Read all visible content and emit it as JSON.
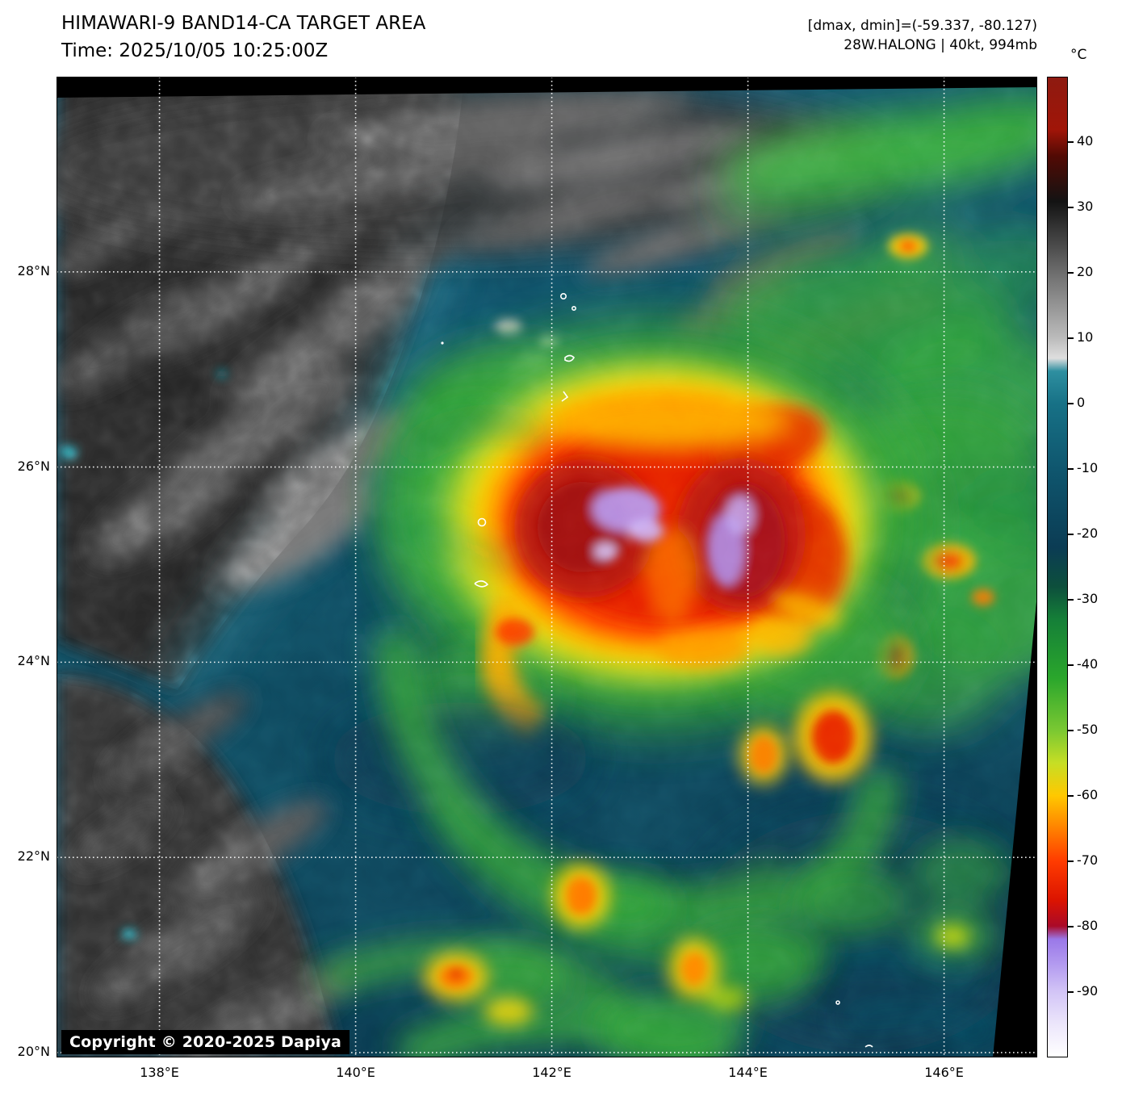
{
  "header": {
    "title": "HIMAWARI-9 BAND14-CA TARGET AREA",
    "time": "Time: 2025/10/05 10:25:00Z",
    "stats": "[dmax, dmin]=(-59.337, -80.127)",
    "storm": "28W.HALONG | 40kt, 994mb"
  },
  "copyright": "Copyright © 2020-2025 Dapiya",
  "colorbar": {
    "unit": "°C",
    "vmax": 50,
    "vmin": -100,
    "ticks": [
      40,
      30,
      20,
      10,
      0,
      -10,
      -20,
      -30,
      -40,
      -50,
      -60,
      -70,
      -80,
      -90
    ],
    "gradient": [
      {
        "v": 50,
        "c": "#8e1a10"
      },
      {
        "v": 42,
        "c": "#a01508"
      },
      {
        "v": 38,
        "c": "#520a04"
      },
      {
        "v": 31,
        "c": "#131313"
      },
      {
        "v": 20,
        "c": "#6e6e6e"
      },
      {
        "v": 10,
        "c": "#bcbcbc"
      },
      {
        "v": 7,
        "c": "#dedede"
      },
      {
        "v": 5,
        "c": "#2e8fa0"
      },
      {
        "v": 0,
        "c": "#177186"
      },
      {
        "v": -10,
        "c": "#0f566e"
      },
      {
        "v": -22,
        "c": "#0b3c54"
      },
      {
        "v": -28,
        "c": "#0d4f3c"
      },
      {
        "v": -33,
        "c": "#157f38"
      },
      {
        "v": -42,
        "c": "#2aa62c"
      },
      {
        "v": -50,
        "c": "#7ac832"
      },
      {
        "v": -55,
        "c": "#c6de25"
      },
      {
        "v": -60,
        "c": "#ffc800"
      },
      {
        "v": -65,
        "c": "#ff8200"
      },
      {
        "v": -70,
        "c": "#ff3c00"
      },
      {
        "v": -76,
        "c": "#dc1400"
      },
      {
        "v": -80,
        "c": "#aa0a28"
      },
      {
        "v": -82,
        "c": "#9a78e8"
      },
      {
        "v": -86,
        "c": "#b49cf0"
      },
      {
        "v": -90,
        "c": "#d2c4f6"
      },
      {
        "v": -95,
        "c": "#ece6fb"
      },
      {
        "v": -100,
        "c": "#ffffff"
      }
    ]
  },
  "axes": {
    "lat_ticks": [
      {
        "value": 28,
        "label": "28°N"
      },
      {
        "value": 26,
        "label": "26°N"
      },
      {
        "value": 24,
        "label": "24°N"
      },
      {
        "value": 22,
        "label": "22°N"
      },
      {
        "value": 20,
        "label": "20°N"
      }
    ],
    "lon_ticks": [
      {
        "value": 138,
        "label": "138°E"
      },
      {
        "value": 140,
        "label": "140°E"
      },
      {
        "value": 142,
        "label": "142°E"
      },
      {
        "value": 144,
        "label": "144°E"
      },
      {
        "value": 146,
        "label": "146°E"
      }
    ],
    "lon_range": [
      136.95,
      146.95
    ],
    "lat_range": [
      19.95,
      30.0
    ]
  },
  "chart_data": {
    "type": "heatmap",
    "title": "HIMAWARI-9 BAND14-CA TARGET AREA",
    "subtitle": "Time: 2025/10/05 10:25:00Z",
    "satellite": "HIMAWARI-9",
    "band": "BAND14-CA",
    "storm_label": "28W.HALONG",
    "storm_intensity_kt": 40,
    "storm_pressure_mb": 994,
    "dmax_c": -59.337,
    "dmin_c": -80.127,
    "xlabel": "",
    "ylabel": "",
    "x_tick_values_lon_E": [
      138,
      140,
      142,
      144,
      146
    ],
    "y_tick_values_lat_N": [
      28,
      26,
      24,
      22,
      20
    ],
    "xlim_lon_E": [
      136.95,
      146.95
    ],
    "ylim_lat_N": [
      19.95,
      30.0
    ],
    "grid": true,
    "colorbar_unit": "°C",
    "colorbar_range_c": [
      -100,
      50
    ],
    "colorbar_tick_values": [
      40,
      30,
      20,
      10,
      0,
      -10,
      -20,
      -30,
      -40,
      -50,
      -60,
      -70,
      -80,
      -90
    ],
    "features": [
      "Tropical storm central dense overcast centered near 142.3E, 25.3N with cloud-top temps below -70C (red)",
      "Coldest overshooting tops below -80C (lavender) embedded near 142.0-142.8E, 25.2-25.6N",
      "Warm grayscale land/low cloud over China coast in the northwest quadrant",
      "Spiral rainbands with convective cells (-50 to -75C) south and east of the center",
      "Cirrus outflow bands (-30 to -55C, green) across the northeast quadrant"
    ]
  }
}
